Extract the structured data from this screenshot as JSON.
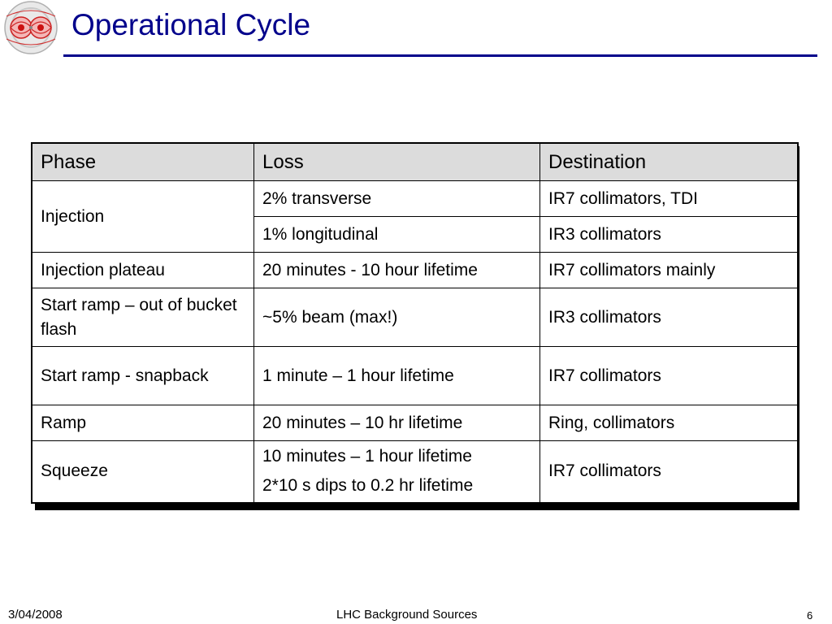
{
  "slide": {
    "title": "Operational Cycle",
    "accent_color": "#00008b",
    "logo_icon": "lhc-magnet-logo"
  },
  "table": {
    "header": {
      "phase": "Phase",
      "loss": "Loss",
      "destination": "Destination"
    },
    "rows": [
      {
        "phase": "Injection",
        "loss": "2% transverse",
        "destination": "IR7 collimators, TDI"
      },
      {
        "loss": "1% longitudinal",
        "destination": "IR3 collimators"
      },
      {
        "phase": "Injection plateau",
        "loss": "20 minutes - 10 hour lifetime",
        "destination": "IR7 collimators mainly"
      },
      {
        "phase": "Start ramp – out of bucket flash",
        "loss": "~5% beam (max!)",
        "destination": "IR3 collimators"
      },
      {
        "phase": "Start ramp - snapback",
        "loss": "1 minute – 1 hour lifetime",
        "destination": "IR7 collimators"
      },
      {
        "phase": "Ramp",
        "loss": "20 minutes – 10 hr lifetime",
        "destination": "Ring, collimators"
      },
      {
        "phase": "Squeeze",
        "loss_lines": [
          "10 minutes – 1 hour lifetime",
          "2*10 s dips to 0.2 hr lifetime"
        ],
        "destination": "IR7 collimators"
      }
    ]
  },
  "footer": {
    "date": "3/04/2008",
    "center": "LHC Background Sources",
    "page": "6"
  }
}
